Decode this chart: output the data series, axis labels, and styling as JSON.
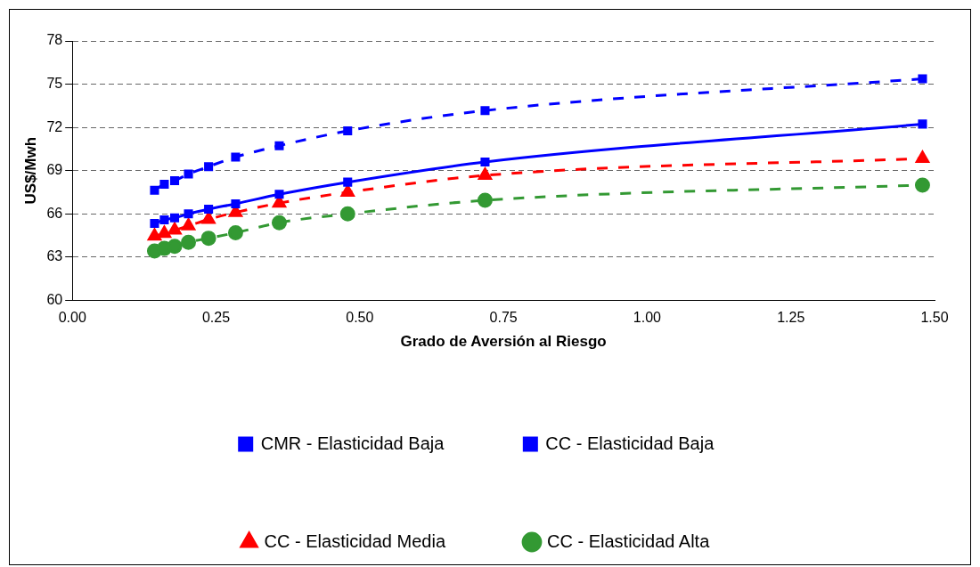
{
  "chart_data": {
    "type": "line",
    "xlabel": "Grado de Aversión al Riesgo",
    "ylabel": "US$/Mwh",
    "x": [
      0.143,
      0.16,
      0.178,
      0.202,
      0.237,
      0.284,
      0.36,
      0.479,
      0.718,
      1.479
    ],
    "xlim": [
      0,
      1.5
    ],
    "xticks": [
      {
        "value": 0,
        "label": "0.00"
      },
      {
        "value": 0.25,
        "label": "0.25"
      },
      {
        "value": 0.5,
        "label": "0.50"
      },
      {
        "value": 0.75,
        "label": "0.75"
      },
      {
        "value": 1,
        "label": "1.00"
      },
      {
        "value": 1.25,
        "label": "1.25"
      },
      {
        "value": 1.5,
        "label": "1.50"
      }
    ],
    "ylim": [
      60,
      78
    ],
    "yticks": [
      60,
      63,
      66,
      69,
      72,
      75,
      78
    ],
    "grid": "y",
    "legend": "bottom",
    "series": [
      {
        "name": "CMR - Elasticidad Baja",
        "color": "#0000ff",
        "marker": "square",
        "line_style": "solid",
        "values": [
          65.34,
          65.58,
          65.72,
          66.0,
          66.33,
          66.7,
          67.36,
          68.2,
          69.6,
          72.23
        ]
      },
      {
        "name": "CC - Elasticidad Baja",
        "color": "#0000ff",
        "marker": "square",
        "line_style": "dashed",
        "values": [
          67.64,
          68.06,
          68.3,
          68.76,
          69.28,
          69.94,
          70.73,
          71.76,
          73.17,
          75.37
        ]
      },
      {
        "name": "CC - Elasticidad Media",
        "color": "#ff0000",
        "marker": "triangle",
        "line_style": "dashed",
        "values": [
          64.45,
          64.64,
          64.87,
          65.16,
          65.62,
          66.1,
          66.75,
          67.5,
          68.67,
          69.84
        ]
      },
      {
        "name": "CC - Elasticidad Alta",
        "color": "#339933",
        "marker": "circle",
        "line_style": "dashed",
        "values": [
          63.42,
          63.6,
          63.75,
          64.03,
          64.31,
          64.69,
          65.39,
          66.0,
          66.94,
          68.0
        ]
      }
    ]
  }
}
